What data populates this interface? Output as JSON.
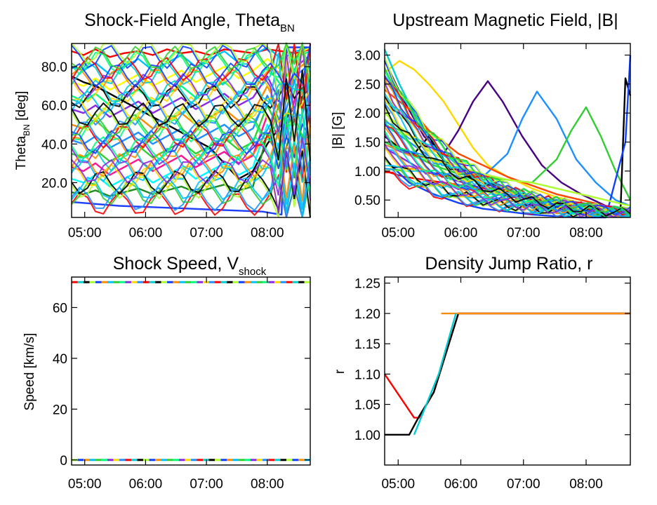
{
  "chart_data": [
    {
      "type": "line",
      "title": "Shock-Field Angle, Theta",
      "title_sub": "BN",
      "ylabel": "Theta",
      "ylabel_sub": "BN",
      "ylabel_unit": "[deg]",
      "x_ticks": [
        "05:00",
        "06:00",
        "07:00",
        "08:00"
      ],
      "y_ticks": [
        "20.0",
        "40.0",
        "60.0",
        "80.0"
      ],
      "ylim": [
        2,
        92
      ],
      "notes": "Hundreds of overlapping rainbow-colored field-line traces; noisy values between ~10 and 90 deg, with a few low traces near 2-20 deg and dense oscillations near 90 deg after 08:00.",
      "series": [
        {
          "color": "#ff0000",
          "x": [
            0.0,
            0.05,
            0.1,
            0.16,
            0.22,
            0.28,
            0.34,
            0.4,
            0.46,
            0.52,
            0.58,
            0.64,
            0.7,
            0.76,
            0.82,
            0.88,
            0.94,
            1.0
          ],
          "y": [
            88.0,
            86.0,
            89.0,
            85.0,
            87.0,
            88.0,
            86.0,
            89.0,
            87.0,
            88.0,
            86.0,
            89.0,
            88.0,
            87.0,
            89.0,
            88.0,
            87.0,
            89.0
          ]
        },
        {
          "color": "#00bfff",
          "x": [
            0.0,
            0.05,
            0.1,
            0.16,
            0.22,
            0.28,
            0.34,
            0.4,
            0.46,
            0.52,
            0.58,
            0.64,
            0.7,
            0.76,
            0.82,
            0.88,
            0.94,
            1.0
          ],
          "y": [
            80.0,
            78.0,
            82.0,
            76.0,
            80.0,
            84.0,
            78.0,
            82.0,
            86.0,
            80.0,
            84.0,
            88.0,
            82.0,
            86.0,
            90.0,
            84.0,
            88.0,
            90.0
          ]
        },
        {
          "color": "#ffff00",
          "x": [
            0.0,
            0.05,
            0.1,
            0.16,
            0.22,
            0.28,
            0.34,
            0.4,
            0.46,
            0.52,
            0.58,
            0.64,
            0.7,
            0.76,
            0.82,
            0.88,
            0.94,
            1.0
          ],
          "y": [
            72.0,
            70.0,
            74.0,
            68.0,
            72.0,
            76.0,
            70.0,
            74.0,
            78.0,
            72.0,
            76.0,
            80.0,
            74.0,
            78.0,
            84.0,
            78.0,
            86.0,
            90.0
          ]
        },
        {
          "color": "#00ff7f",
          "x": [
            0.0,
            0.05,
            0.1,
            0.16,
            0.22,
            0.28,
            0.34,
            0.4,
            0.46,
            0.52,
            0.58,
            0.64,
            0.7,
            0.76,
            0.82,
            0.88,
            0.94,
            1.0
          ],
          "y": [
            65.0,
            62.0,
            66.0,
            60.0,
            64.0,
            68.0,
            62.0,
            66.0,
            70.0,
            64.0,
            68.0,
            72.0,
            66.0,
            70.0,
            80.0,
            70.0,
            85.0,
            88.0
          ]
        },
        {
          "color": "#8a2be2",
          "x": [
            0.0,
            0.05,
            0.1,
            0.16,
            0.22,
            0.28,
            0.34,
            0.4,
            0.46,
            0.52,
            0.58,
            0.64,
            0.7,
            0.76,
            0.82,
            0.88,
            0.94,
            1.0
          ],
          "y": [
            58.0,
            56.0,
            60.0,
            54.0,
            58.0,
            62.0,
            56.0,
            60.0,
            64.0,
            58.0,
            62.0,
            66.0,
            60.0,
            64.0,
            75.0,
            60.0,
            80.0,
            86.0
          ]
        },
        {
          "color": "#ff8c00",
          "x": [
            0.0,
            0.05,
            0.1,
            0.16,
            0.22,
            0.28,
            0.34,
            0.4,
            0.46,
            0.52,
            0.58,
            0.64,
            0.7,
            0.76,
            0.82,
            0.88,
            0.94,
            1.0
          ],
          "y": [
            50.0,
            48.0,
            52.0,
            46.0,
            50.0,
            54.0,
            48.0,
            52.0,
            56.0,
            50.0,
            54.0,
            58.0,
            52.0,
            56.0,
            70.0,
            55.0,
            78.0,
            84.0
          ]
        },
        {
          "color": "#1e90ff",
          "x": [
            0.0,
            0.05,
            0.1,
            0.16,
            0.22,
            0.28,
            0.34,
            0.4,
            0.46,
            0.52,
            0.58,
            0.64,
            0.7,
            0.76,
            0.82,
            0.88,
            0.94,
            1.0
          ],
          "y": [
            42.0,
            40.0,
            44.0,
            38.0,
            42.0,
            46.0,
            40.0,
            44.0,
            48.0,
            42.0,
            46.0,
            50.0,
            44.0,
            48.0,
            65.0,
            50.0,
            75.0,
            82.0
          ]
        },
        {
          "color": "#32cd32",
          "x": [
            0.0,
            0.05,
            0.1,
            0.16,
            0.22,
            0.28,
            0.34,
            0.4,
            0.46,
            0.52,
            0.58,
            0.64,
            0.7,
            0.76,
            0.82,
            0.88,
            0.94,
            1.0
          ],
          "y": [
            35.0,
            33.0,
            37.0,
            31.0,
            35.0,
            39.0,
            33.0,
            37.0,
            41.0,
            35.0,
            39.0,
            43.0,
            37.0,
            41.0,
            60.0,
            45.0,
            70.0,
            80.0
          ]
        },
        {
          "color": "#000000",
          "x": [
            0.0,
            0.05,
            0.1,
            0.16,
            0.22,
            0.28,
            0.34,
            0.4,
            0.46,
            0.52,
            0.58,
            0.64,
            0.7,
            0.76,
            0.82,
            0.88,
            0.94,
            1.0
          ],
          "y": [
            75.0,
            72.0,
            70.0,
            66.0,
            62.0,
            58.0,
            54.0,
            50.0,
            46.0,
            42.0,
            38.0,
            30.0,
            22.0,
            26.0,
            40.0,
            50.0,
            60.0,
            70.0
          ]
        },
        {
          "color": "#ff1493",
          "x": [
            0.0,
            0.05,
            0.1,
            0.16,
            0.22,
            0.28,
            0.34,
            0.4,
            0.46,
            0.52,
            0.58,
            0.64,
            0.7,
            0.76,
            0.82,
            0.88,
            0.94,
            1.0
          ],
          "y": [
            28.0,
            26.0,
            30.0,
            24.0,
            28.0,
            32.0,
            26.0,
            30.0,
            34.0,
            28.0,
            32.0,
            36.0,
            30.0,
            34.0,
            55.0,
            40.0,
            65.0,
            78.0
          ]
        },
        {
          "color": "#00ffff",
          "x": [
            0.0,
            0.05,
            0.1,
            0.16,
            0.22,
            0.28,
            0.34,
            0.4,
            0.46,
            0.52,
            0.58,
            0.64,
            0.7,
            0.76,
            0.82,
            0.88,
            0.94,
            1.0
          ],
          "y": [
            22.0,
            20.0,
            24.0,
            18.0,
            22.0,
            26.0,
            20.0,
            24.0,
            28.0,
            22.0,
            26.0,
            30.0,
            24.0,
            28.0,
            50.0,
            35.0,
            60.0,
            76.0
          ]
        },
        {
          "color": "#228b22",
          "x": [
            0.0,
            0.05,
            0.1,
            0.16,
            0.22,
            0.28,
            0.34,
            0.4,
            0.46,
            0.52,
            0.58,
            0.64,
            0.7,
            0.76,
            0.82,
            0.88,
            0.94,
            1.0
          ],
          "y": [
            15.0,
            14.0,
            16.0,
            13.0,
            15.0,
            17.0,
            14.0,
            16.0,
            18.0,
            15.0,
            17.0,
            19.0,
            16.0,
            18.0,
            45.0,
            30.0,
            55.0,
            74.0
          ]
        },
        {
          "color": "#1e40ff",
          "x": [
            0.0,
            0.2,
            0.4,
            0.6,
            0.8,
            0.85,
            0.88,
            0.9,
            1.0
          ],
          "y": [
            10.0,
            8.0,
            7.0,
            6.0,
            5.0,
            4.0,
            3.5,
            90.0,
            90.0
          ]
        }
      ]
    },
    {
      "type": "line",
      "title": "Upstream Magnetic Field, |B|",
      "ylabel": "|B| [G]",
      "x_ticks": [
        "05:00",
        "06:00",
        "07:00",
        "08:00"
      ],
      "y_ticks": [
        "0.50",
        "1.00",
        "1.50",
        "2.00",
        "2.50",
        "3.00"
      ],
      "ylim": [
        0.2,
        3.2
      ],
      "notes": "Many rainbow-colored traces decaying from ~1-3 G to ~0.2 G; some curves bump upward (e.g. purple to ~2.55 G, blue to ~2.37 G, green to ~2.1 G) and sharp spikes near the right edge.",
      "series": [
        {
          "color": "#ffd700",
          "x": [
            0.0,
            0.06,
            0.12,
            0.18,
            0.24,
            0.3,
            0.36,
            0.42,
            0.5,
            0.6,
            0.7,
            0.8,
            0.9,
            1.0
          ],
          "y": [
            2.7,
            2.9,
            2.75,
            2.5,
            2.2,
            1.8,
            1.4,
            1.1,
            0.9,
            0.7,
            0.55,
            0.45,
            0.35,
            0.3
          ]
        },
        {
          "color": "#4b0082",
          "x": [
            0.0,
            0.08,
            0.16,
            0.24,
            0.3,
            0.36,
            0.42,
            0.48,
            0.56,
            0.64,
            0.72,
            0.8,
            0.9,
            1.0
          ],
          "y": [
            2.9,
            2.2,
            1.6,
            1.3,
            1.7,
            2.2,
            2.55,
            2.2,
            1.6,
            1.1,
            0.8,
            0.6,
            0.4,
            0.3
          ]
        },
        {
          "color": "#1e90ff",
          "x": [
            0.0,
            0.1,
            0.2,
            0.3,
            0.4,
            0.5,
            0.56,
            0.62,
            0.7,
            0.78,
            0.86,
            0.94,
            1.0
          ],
          "y": [
            1.8,
            1.5,
            1.2,
            1.0,
            0.9,
            1.3,
            1.9,
            2.37,
            1.9,
            1.2,
            0.8,
            0.5,
            0.4
          ]
        },
        {
          "color": "#32cd32",
          "x": [
            0.0,
            0.1,
            0.2,
            0.3,
            0.4,
            0.5,
            0.6,
            0.7,
            0.76,
            0.82,
            0.88,
            0.94,
            1.0
          ],
          "y": [
            1.5,
            1.3,
            1.1,
            0.95,
            0.9,
            0.85,
            0.8,
            1.2,
            1.7,
            2.1,
            1.6,
            1.0,
            0.5
          ]
        },
        {
          "color": "#ff4500",
          "x": [
            0.0,
            0.06,
            0.12,
            0.18,
            0.24,
            0.3,
            0.4,
            0.5,
            0.6,
            0.7,
            0.8,
            0.9,
            1.0
          ],
          "y": [
            2.4,
            2.2,
            2.0,
            1.7,
            1.5,
            1.3,
            1.1,
            0.9,
            0.75,
            0.6,
            0.5,
            0.4,
            0.3
          ]
        },
        {
          "color": "#00ced1",
          "x": [
            0.0,
            0.06,
            0.12,
            0.18,
            0.24,
            0.3,
            0.4,
            0.5,
            0.6,
            0.7,
            0.8,
            0.9,
            1.0
          ],
          "y": [
            3.1,
            2.5,
            2.0,
            1.6,
            1.3,
            1.1,
            0.9,
            0.7,
            0.55,
            0.45,
            0.35,
            0.3,
            0.25
          ]
        },
        {
          "color": "#000000",
          "x": [
            0.0,
            0.06,
            0.12,
            0.18,
            0.24,
            0.3,
            0.4,
            0.5,
            0.6,
            0.7,
            0.8,
            0.9,
            0.96,
            0.98,
            1.0
          ],
          "y": [
            1.6,
            1.4,
            1.3,
            1.6,
            1.2,
            1.0,
            0.8,
            0.65,
            0.5,
            0.4,
            0.3,
            0.25,
            0.3,
            2.6,
            2.3
          ]
        },
        {
          "color": "#ff0000",
          "x": [
            0.0,
            0.08,
            0.16,
            0.24,
            0.32,
            0.4,
            0.5,
            0.6,
            0.7,
            0.8,
            0.9,
            1.0
          ],
          "y": [
            1.0,
            0.9,
            0.85,
            0.8,
            0.75,
            0.7,
            0.6,
            0.5,
            0.45,
            0.4,
            0.35,
            0.3
          ]
        },
        {
          "color": "#1040ff",
          "x": [
            0.0,
            0.1,
            0.2,
            0.3,
            0.4,
            0.5,
            0.6,
            0.7,
            0.8,
            0.9,
            0.98,
            1.0
          ],
          "y": [
            1.2,
            0.8,
            0.6,
            0.45,
            0.35,
            0.3,
            0.25,
            0.22,
            0.2,
            0.2,
            1.5,
            3.0
          ]
        },
        {
          "color": "#adff2f",
          "x": [
            0.0,
            0.08,
            0.16,
            0.24,
            0.32,
            0.4,
            0.5,
            0.6,
            0.7,
            0.8,
            0.9,
            1.0
          ],
          "y": [
            2.0,
            1.7,
            1.4,
            1.2,
            1.05,
            0.95,
            0.85,
            0.8,
            0.7,
            0.6,
            0.5,
            0.4
          ]
        },
        {
          "color": "#8a2be2",
          "x": [
            0.0,
            0.08,
            0.16,
            0.24,
            0.32,
            0.4,
            0.5,
            0.6,
            0.7,
            0.8,
            0.9,
            1.0
          ],
          "y": [
            1.4,
            1.2,
            1.0,
            0.9,
            0.8,
            0.7,
            0.6,
            0.55,
            0.5,
            0.45,
            0.4,
            0.35
          ]
        }
      ]
    },
    {
      "type": "line",
      "title": "Shock Speed, V",
      "title_sub": "shock",
      "ylabel": "Speed [km/s]",
      "x_ticks": [
        "05:00",
        "06:00",
        "07:00",
        "08:00"
      ],
      "y_ticks": [
        "0",
        "20",
        "40",
        "60"
      ],
      "ylim": [
        -2,
        72
      ],
      "notes": "Two flat multicolored bands: one at ~70 km/s and one at 0 km/s across the whole time range.",
      "series": [
        {
          "color": "multicolor",
          "x": [
            0.0,
            1.0
          ],
          "y": [
            70.0,
            70.0
          ]
        },
        {
          "color": "multicolor",
          "x": [
            0.0,
            1.0
          ],
          "y": [
            0.0,
            0.0
          ]
        }
      ]
    },
    {
      "type": "line",
      "title": "Density Jump Ratio, r",
      "ylabel": "r",
      "x_ticks": [
        "05:00",
        "06:00",
        "07:00",
        "08:00"
      ],
      "y_ticks": [
        "1.00",
        "1.05",
        "1.10",
        "1.15",
        "1.20",
        "1.25"
      ],
      "ylim": [
        0.95,
        1.26
      ],
      "notes": "Ratio starts near 1.00-1.10, dips to ~1.03 near 05:10, rises linearly to 1.20 by ~05:50, then remains flat at 1.20.",
      "series": [
        {
          "color": "#ff0000",
          "x": [
            0.0,
            0.12,
            0.14,
            0.2,
            0.3,
            1.0
          ],
          "y": [
            1.1,
            1.028,
            1.028,
            1.07,
            1.2,
            1.2
          ]
        },
        {
          "color": "#000000",
          "x": [
            0.0,
            0.1,
            0.14,
            0.2,
            0.3,
            1.0
          ],
          "y": [
            1.0,
            1.0,
            1.03,
            1.07,
            1.2,
            1.2
          ]
        },
        {
          "color": "#ff8c00",
          "x": [
            0.23,
            0.28,
            1.0
          ],
          "y": [
            1.2,
            1.2,
            1.2
          ]
        },
        {
          "color": "#00ced1",
          "x": [
            0.12,
            0.16,
            0.22,
            0.29
          ],
          "y": [
            1.0,
            1.04,
            1.1,
            1.2
          ]
        }
      ]
    }
  ]
}
